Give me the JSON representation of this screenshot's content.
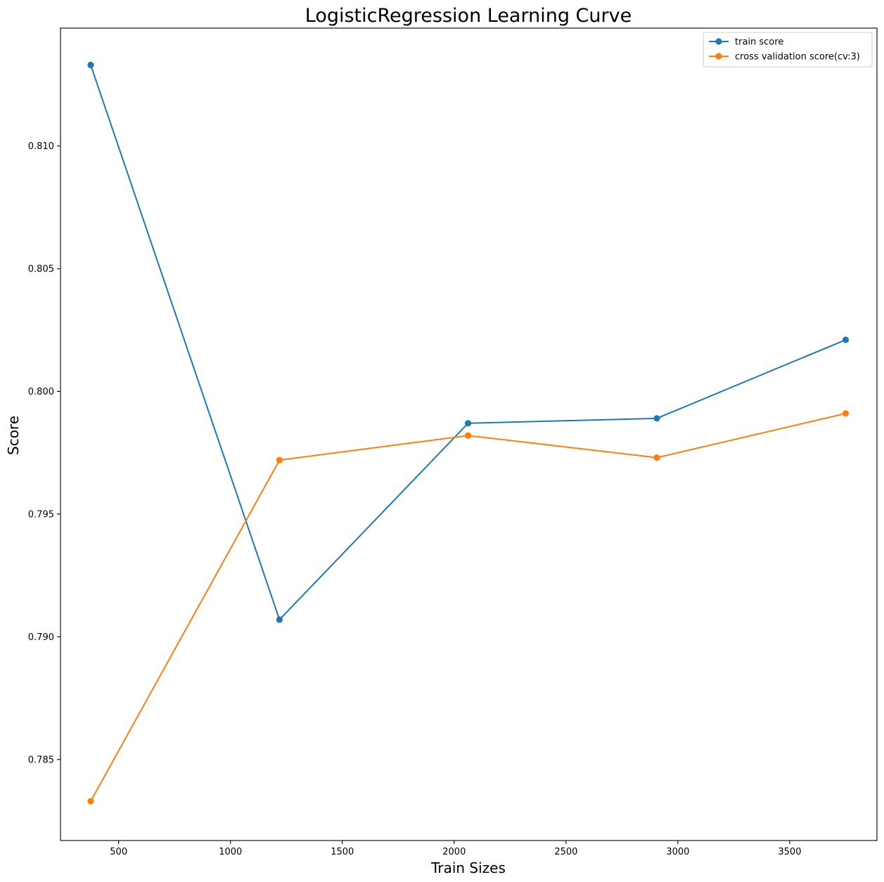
{
  "chart_data": {
    "type": "line",
    "title": "LogisticRegression Learning Curve",
    "xlabel": "Train Sizes",
    "ylabel": "Score",
    "xlim": [
      240,
      3890
    ],
    "ylim": [
      0.7817,
      0.8148
    ],
    "xticks": [
      500,
      1000,
      1500,
      2000,
      2500,
      3000,
      3500
    ],
    "yticks": [
      0.785,
      0.79,
      0.795,
      0.8,
      0.805,
      0.81
    ],
    "ytick_labels": [
      "0.785",
      "0.790",
      "0.795",
      "0.800",
      "0.805",
      "0.810"
    ],
    "grid": false,
    "legend_position": "top-right",
    "x": [
      375,
      1219,
      2062,
      2906,
      3750
    ],
    "series": [
      {
        "name": "train score",
        "color": "#1f77b4",
        "marker": "circle",
        "values": [
          0.8133,
          0.7907,
          0.7987,
          0.7989,
          0.8021
        ]
      },
      {
        "name": "cross validation score(cv:3)",
        "color": "#ff7f0e",
        "marker": "circle",
        "values": [
          0.7833,
          0.7972,
          0.7982,
          0.7973,
          0.7991
        ]
      }
    ]
  }
}
